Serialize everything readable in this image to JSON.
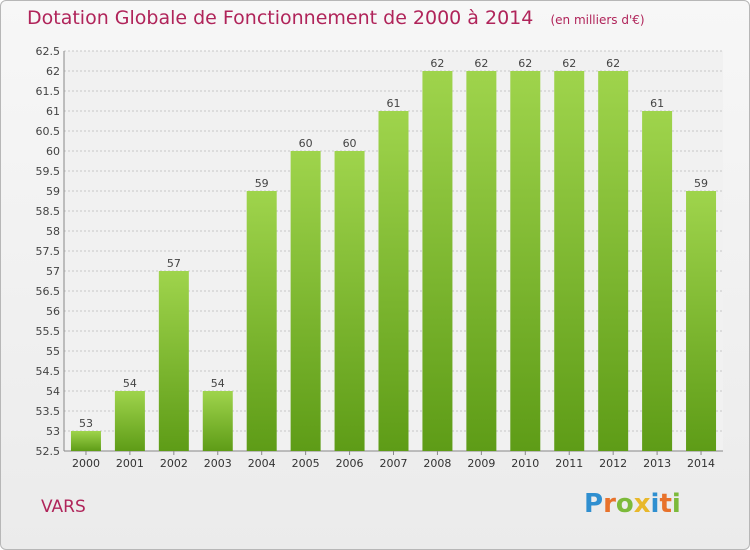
{
  "chart_data": {
    "type": "bar",
    "title": "Dotation Globale de Fonctionnement de 2000 à 2014",
    "subtitle": "(en milliers d'€)",
    "categories": [
      "2000",
      "2001",
      "2002",
      "2003",
      "2004",
      "2005",
      "2006",
      "2007",
      "2008",
      "2009",
      "2010",
      "2011",
      "2012",
      "2013",
      "2014"
    ],
    "values": [
      53,
      54,
      57,
      54,
      59,
      60,
      60,
      61,
      62,
      62,
      62,
      62,
      62,
      61,
      59
    ],
    "ylim": [
      52.5,
      62.5
    ],
    "yticks": [
      "52.5",
      "53",
      "53.5",
      "54",
      "54.5",
      "55",
      "55.5",
      "56",
      "56.5",
      "57",
      "57.5",
      "58",
      "58.5",
      "59",
      "59.5",
      "60",
      "60.5",
      "61",
      "61.5",
      "62",
      "62.5"
    ],
    "grid": true,
    "colors": {
      "bar_top": "#9fd44c",
      "bar_bottom": "#5e9c17",
      "grid": "#c8c8c8",
      "title": "#b0245a"
    }
  },
  "commune": "VARS",
  "logo": {
    "letters": [
      {
        "ch": "P",
        "color": "#2f8fd0"
      },
      {
        "ch": "r",
        "color": "#e8722b"
      },
      {
        "ch": "o",
        "color": "#7cba3a"
      },
      {
        "ch": "x",
        "color": "#e8b82b"
      },
      {
        "ch": "i",
        "color": "#2f8fd0"
      },
      {
        "ch": "t",
        "color": "#e8722b"
      },
      {
        "ch": "i",
        "color": "#7cba3a"
      }
    ]
  }
}
